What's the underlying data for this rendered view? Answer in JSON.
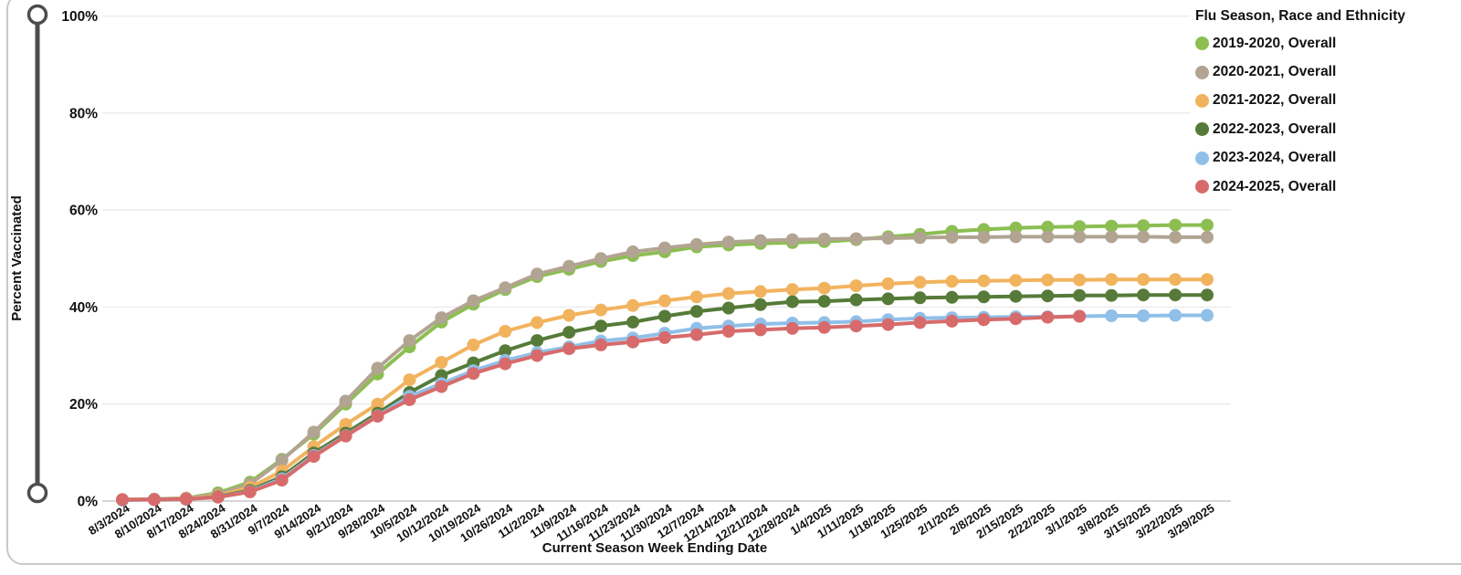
{
  "page": {
    "background": "#ffffff"
  },
  "card": {
    "border_color": "#c9c9c9"
  },
  "colors": {
    "grid": "#eaeaea",
    "axis_line": "#c9c9c9",
    "slider": "#4d4d4d",
    "text": "#111111",
    "background": "#ffffff"
  },
  "chart_data": {
    "type": "line",
    "title": "",
    "xlabel": "Current Season Week Ending Date",
    "ylabel": "Percent Vaccinated",
    "ylim": [
      0,
      100
    ],
    "grid": true,
    "legend_title": "Flu Season, Race and Ethnicity",
    "legend_position": "top-right",
    "yticks": [
      {
        "label": "0%",
        "value": 0
      },
      {
        "label": "20%",
        "value": 20
      },
      {
        "label": "40%",
        "value": 40
      },
      {
        "label": "60%",
        "value": 60
      },
      {
        "label": "80%",
        "value": 80
      },
      {
        "label": "100%",
        "value": 100
      }
    ],
    "x": [
      "8/3/2024",
      "8/10/2024",
      "8/17/2024",
      "8/24/2024",
      "8/31/2024",
      "9/7/2024",
      "9/14/2024",
      "9/21/2024",
      "9/28/2024",
      "10/5/2024",
      "10/12/2024",
      "10/19/2024",
      "10/26/2024",
      "11/2/2024",
      "11/9/2024",
      "11/16/2024",
      "11/23/2024",
      "11/30/2024",
      "12/7/2024",
      "12/14/2024",
      "12/21/2024",
      "12/28/2024",
      "1/4/2025",
      "1/11/2025",
      "1/18/2025",
      "1/25/2025",
      "2/1/2025",
      "2/8/2025",
      "2/15/2025",
      "2/22/2025",
      "3/1/2025",
      "3/8/2025",
      "3/15/2025",
      "3/22/2025",
      "3/29/2025"
    ],
    "series": [
      {
        "name": "2019-2020, Overall",
        "color": "#8CBE52",
        "values": [
          0.3,
          0.4,
          0.6,
          1.7,
          3.9,
          8.6,
          13.8,
          20.0,
          26.2,
          31.8,
          36.9,
          40.6,
          43.6,
          46.3,
          47.8,
          49.4,
          50.6,
          51.4,
          52.4,
          52.8,
          53.1,
          53.3,
          53.5,
          53.9,
          54.5,
          55.0,
          55.6,
          56.0,
          56.3,
          56.5,
          56.6,
          56.7,
          56.8,
          56.9,
          56.9
        ]
      },
      {
        "name": "2020-2021, Overall",
        "color": "#B2A492",
        "values": [
          0.3,
          0.4,
          0.6,
          1.4,
          3.5,
          8.4,
          14.2,
          20.6,
          27.4,
          33.1,
          37.8,
          41.3,
          44.0,
          46.8,
          48.4,
          50.0,
          51.4,
          52.2,
          52.9,
          53.4,
          53.7,
          53.9,
          54.0,
          54.1,
          54.2,
          54.3,
          54.4,
          54.4,
          54.5,
          54.5,
          54.5,
          54.5,
          54.5,
          54.4,
          54.4
        ]
      },
      {
        "name": "2021-2022, Overall",
        "color": "#F2B35E",
        "values": [
          0.2,
          0.3,
          0.5,
          1.1,
          2.8,
          6.2,
          11.2,
          15.8,
          20.0,
          25.0,
          28.6,
          32.2,
          35.0,
          36.8,
          38.3,
          39.4,
          40.3,
          41.3,
          42.1,
          42.8,
          43.2,
          43.6,
          43.9,
          44.4,
          44.8,
          45.1,
          45.3,
          45.4,
          45.5,
          45.6,
          45.6,
          45.7,
          45.7,
          45.7,
          45.7
        ]
      },
      {
        "name": "2022-2023, Overall",
        "color": "#567B39",
        "values": [
          0.2,
          0.3,
          0.4,
          0.9,
          2.2,
          5.0,
          9.9,
          14.0,
          18.1,
          22.4,
          25.9,
          28.5,
          31.0,
          33.1,
          34.8,
          36.1,
          36.9,
          38.1,
          39.1,
          39.8,
          40.5,
          41.1,
          41.2,
          41.5,
          41.7,
          41.9,
          42.0,
          42.1,
          42.2,
          42.3,
          42.4,
          42.4,
          42.5,
          42.5,
          42.5
        ]
      },
      {
        "name": "2023-2024, Overall",
        "color": "#90BFE8",
        "values": [
          0.2,
          0.3,
          0.4,
          0.8,
          2.0,
          4.6,
          9.4,
          13.5,
          17.6,
          21.6,
          24.2,
          26.9,
          29.0,
          30.6,
          31.8,
          33.0,
          33.6,
          34.6,
          35.6,
          36.1,
          36.5,
          36.7,
          36.8,
          37.0,
          37.4,
          37.7,
          37.8,
          37.9,
          38.0,
          38.0,
          38.1,
          38.2,
          38.2,
          38.3,
          38.3
        ]
      },
      {
        "name": "2024-2025, Overall",
        "color": "#D76B6B",
        "values": [
          0.3,
          0.3,
          0.4,
          0.8,
          1.9,
          4.3,
          9.2,
          13.4,
          17.5,
          20.9,
          23.6,
          26.3,
          28.3,
          30.0,
          31.4,
          32.2,
          32.8,
          33.7,
          34.3,
          35.0,
          35.3,
          35.6,
          35.8,
          36.1,
          36.4,
          36.8,
          37.1,
          37.4,
          37.6,
          37.9,
          38.1
        ]
      }
    ]
  }
}
